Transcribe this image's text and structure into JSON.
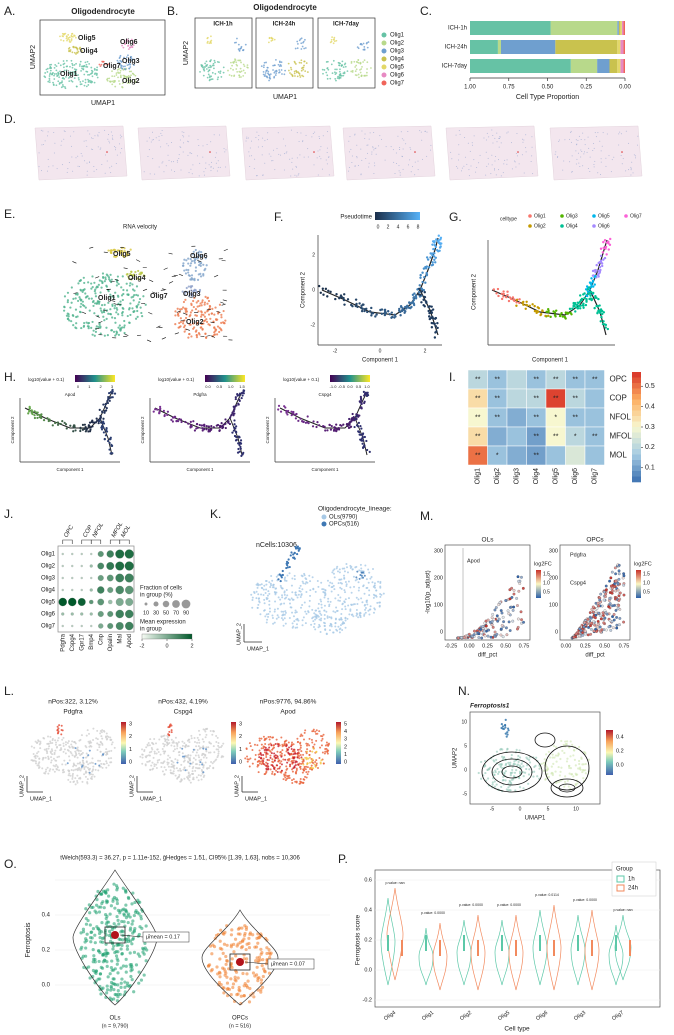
{
  "chart_data": [
    {
      "type": "stacked-barh",
      "categories": [
        "ICH-1h",
        "ICH-24h",
        "ICH-7day"
      ],
      "series": [
        {
          "name": "Olig1",
          "color": "#66c2a5",
          "values": [
            0.52,
            0.18,
            0.65
          ]
        },
        {
          "name": "Olig2",
          "color": "#b8d98b",
          "values": [
            0.43,
            0.02,
            0.17
          ]
        },
        {
          "name": "Olig3",
          "color": "#6f9fcf",
          "values": [
            0.01,
            0.35,
            0.08
          ]
        },
        {
          "name": "Olig4",
          "color": "#c9c24e",
          "values": [
            0.01,
            0.4,
            0.05
          ]
        },
        {
          "name": "Olig5",
          "color": "#e3d868",
          "values": [
            0.01,
            0.02,
            0.02
          ]
        },
        {
          "name": "Olig6",
          "color": "#e78ac3",
          "values": [
            0.01,
            0.02,
            0.02
          ]
        },
        {
          "name": "Olig7",
          "color": "#f0645a",
          "values": [
            0.01,
            0.01,
            0.01
          ]
        }
      ],
      "xlim": [
        1,
        0
      ],
      "xticks": [
        {
          "value": 1,
          "label": "1.00"
        },
        {
          "value": 0.75,
          "label": "0.75"
        },
        {
          "value": 0.5,
          "label": "0.50"
        },
        {
          "value": 0.25,
          "label": "0.25"
        },
        {
          "value": 0,
          "label": "0.00"
        }
      ],
      "xlabel": "Cell Type Proportion"
    },
    {
      "type": "heatmap",
      "rows": [
        "OPC",
        "COP",
        "NFOL",
        "MFOL",
        "MOL"
      ],
      "columns": [
        "Olig1",
        "Olig2",
        "Olig3",
        "Olig4",
        "Olig5",
        "Olig6",
        "Olig7"
      ],
      "values": [
        [
          0.2,
          0.15,
          0.2,
          0.15,
          0.2,
          0.15,
          0.15
        ],
        [
          0.35,
          0.15,
          0.2,
          0.2,
          0.55,
          0.2,
          0.15
        ],
        [
          0.3,
          0.15,
          0.12,
          0.15,
          0.3,
          0.15,
          0.15
        ],
        [
          0.35,
          0.12,
          0.15,
          0.1,
          0.3,
          0.2,
          0.15
        ],
        [
          0.5,
          0.15,
          0.12,
          0.1,
          0.15,
          0.25,
          0.15
        ]
      ],
      "annotations": [
        [
          "**",
          "**",
          null,
          "**",
          "**",
          "**",
          "**"
        ],
        [
          "**",
          "**",
          null,
          "**",
          "**",
          "**",
          null
        ],
        [
          "**",
          "**",
          null,
          "**",
          "*",
          "**",
          null
        ],
        [
          "**",
          null,
          null,
          "**",
          "**",
          "*",
          "**"
        ],
        [
          "**",
          "*",
          null,
          "**",
          null,
          null,
          null
        ]
      ],
      "zlim": [
        0.03,
        0.57
      ],
      "zticks": [
        0.1,
        0.2,
        0.3,
        0.4,
        0.5
      ]
    },
    {
      "type": "dotplot",
      "groups": [
        "OPC",
        "COP",
        "NFOL",
        "MFOL",
        "MOL"
      ],
      "rows": [
        "Olig1",
        "Olig2",
        "Olig3",
        "Olig4",
        "Olig5",
        "Olig6",
        "Olig7"
      ],
      "genes": [
        "Pdgfra",
        "Cspg4",
        "Gpr17",
        "Bmp4",
        "Cnp",
        "Opalin",
        "Mal",
        "Apod"
      ],
      "fraction": [
        [
          5,
          5,
          5,
          5,
          40,
          60,
          90,
          95
        ],
        [
          5,
          5,
          5,
          10,
          50,
          70,
          90,
          95
        ],
        [
          5,
          5,
          5,
          5,
          40,
          50,
          85,
          90
        ],
        [
          5,
          5,
          5,
          10,
          60,
          40,
          80,
          80
        ],
        [
          80,
          80,
          70,
          20,
          50,
          20,
          70,
          70
        ],
        [
          10,
          10,
          10,
          10,
          40,
          40,
          80,
          80
        ],
        [
          5,
          5,
          5,
          5,
          30,
          40,
          70,
          80
        ]
      ],
      "expression": [
        [
          -1,
          -1,
          -1,
          -1,
          0.5,
          1,
          1.5,
          1.5
        ],
        [
          -1,
          -1,
          -1,
          -0.5,
          0.8,
          1.2,
          1.5,
          1.5
        ],
        [
          -1,
          -1,
          -1,
          -1,
          0.3,
          0.5,
          1,
          1
        ],
        [
          -1,
          -1,
          -1,
          -0.5,
          1,
          0.3,
          0.8,
          0.5
        ],
        [
          2,
          2,
          1.8,
          0.5,
          0.5,
          -0.5,
          0,
          0
        ],
        [
          -0.5,
          -0.5,
          -0.5,
          -0.5,
          0.3,
          0.5,
          1,
          1
        ],
        [
          -1,
          -1,
          -1,
          -1,
          0,
          0.5,
          0.8,
          1
        ]
      ],
      "size_legend_title": [
        "Fraction of cells",
        "in group (%)"
      ],
      "size_ticks": [
        10,
        30,
        50,
        70,
        90
      ],
      "color_legend_title": [
        "Mean expression",
        "in group"
      ],
      "clim": [
        -2,
        2
      ],
      "color_ticks": [
        -2,
        0,
        2
      ]
    }
  ],
  "figure": {
    "A": {
      "letter": "A.",
      "title": "Oligodendrocyte",
      "labels": [
        "Olig5",
        "Olig4",
        "Olig6",
        "Olig1",
        "Olig7",
        "Olig3",
        "Olig2"
      ],
      "xlabel": "UMAP1",
      "ylabel": "UMAP2"
    },
    "B": {
      "letter": "B.",
      "title": "Oligodendrocyte",
      "panels": [
        "ICH-1h",
        "ICH-24h",
        "ICH-7day"
      ],
      "xlabel": "UMAP1",
      "ylabel": "UMAP2"
    },
    "C": {
      "letter": "C."
    },
    "D": {
      "letter": "D."
    },
    "E": {
      "letter": "E.",
      "title": "RNA velocity",
      "labels": [
        "Olig5",
        "Olig4",
        "Olig6",
        "Olig7",
        "Olig3",
        "Olig1",
        "Olig2"
      ]
    },
    "F": {
      "letter": "F.",
      "legend_title": "Pseudotime",
      "colorbar_ticks": [
        "0",
        "2",
        "4",
        "6",
        "8"
      ],
      "xlabel": "Component 1",
      "ylabel": "Component 2",
      "xticks": [
        "-2",
        "0",
        "2"
      ],
      "yticks": [
        "2",
        "0",
        "-2"
      ]
    },
    "G": {
      "letter": "G.",
      "legend_title": "celltype",
      "legend_colors": [
        "#f8766d",
        "#c49a00",
        "#53b400",
        "#00c094",
        "#00b6eb",
        "#a58aff",
        "#fb61d7"
      ],
      "xlabel": "Component 1",
      "ylabel": "Component 2"
    },
    "H": {
      "letter": "H.",
      "plots": [
        {
          "legend_title": "log10(value + 0.1)",
          "gene": "Apod",
          "colorbar_ticks": [
            "0",
            "1",
            "2",
            "3"
          ]
        },
        {
          "legend_title": "log10(value + 0.1)",
          "gene": "Pdgfra",
          "colorbar_ticks": [
            "0.0",
            "0.5",
            "1.0",
            "1.5"
          ]
        },
        {
          "legend_title": "log10(value + 0.1)",
          "gene": "Cspg4",
          "colorbar_ticks": [
            "-1.0",
            "-0.5",
            "0.0",
            "0.5",
            "1.0"
          ]
        }
      ],
      "xlabel": "Component 1",
      "ylabel": "Component 2"
    },
    "I": {
      "letter": "I."
    },
    "J": {
      "letter": "J."
    },
    "K": {
      "letter": "K.",
      "legend_title": "Oligodendrocyte_lineage:",
      "legend": [
        "OLs(9790)",
        "OPCs(516)"
      ],
      "note": "nCells:10306",
      "xlabel": "UMAP_1",
      "ylabel": "UMAP_2"
    },
    "M": {
      "letter": "M.",
      "ylabel": "-log10(p_adjust)",
      "xlabel": "diff_pct",
      "legend_title": "log2FC",
      "plots": [
        {
          "title": "OLs",
          "xticks": [
            "-0.25",
            "0.00",
            "0.25",
            "0.50",
            "0.75"
          ],
          "yticks": [
            "0",
            "100",
            "200",
            "300"
          ],
          "colorbar_ticks": [
            "1.5",
            "1.0",
            "0.5"
          ],
          "genes": [
            "Apod"
          ]
        },
        {
          "title": "OPCs",
          "xticks": [
            "0.00",
            "0.25",
            "0.50",
            "0.75"
          ],
          "yticks": [
            "0",
            "100",
            "200",
            "300"
          ],
          "colorbar_ticks": [
            "1.5",
            "1.0",
            "0.5"
          ],
          "genes": [
            "Pdgfra",
            "Cspg4"
          ]
        }
      ]
    },
    "L": {
      "letter": "L.",
      "xlabel": "UMAP_1",
      "ylabel": "UMAP_2",
      "plots": [
        {
          "note": "nPos:322, 3.12%",
          "gene": "Pdgfra",
          "colorbar_ticks": [
            "3",
            "2",
            "1",
            "0"
          ]
        },
        {
          "note": "nPos:432, 4.19%",
          "gene": "Cspg4",
          "colorbar_ticks": [
            "3",
            "2",
            "1",
            "0"
          ]
        },
        {
          "note": "nPos:9776, 94.86%",
          "gene": "Apod",
          "colorbar_ticks": [
            "5",
            "4",
            "3",
            "2",
            "1",
            "0"
          ]
        }
      ]
    },
    "N": {
      "letter": "N.",
      "title": "Ferroptosis1",
      "xlabel": "UMAP1",
      "ylabel": "UMAP2",
      "xticks": [
        "-5",
        "0",
        "5",
        "10"
      ],
      "yticks": [
        "10",
        "5",
        "0",
        "-5"
      ],
      "colorbar_ticks": [
        "0.4",
        "0.2",
        "0.0"
      ]
    },
    "O": {
      "letter": "O.",
      "stats": "tWelch(593.3) = 36.27, p = 1.11e-152, ĝHedges = 1.51, CI95% [1.39, 1.63], nobs = 10,306",
      "ylabel": "Ferroptosis",
      "yticks": [
        "0.4",
        "0.2",
        "0.0"
      ],
      "groups": [
        {
          "name": "OLs",
          "n": "(n = 9,790)",
          "mean": "μ̂mean = 0.17"
        },
        {
          "name": "OPCs",
          "n": "(n = 516)",
          "mean": "μ̂mean = 0.07"
        }
      ]
    },
    "P": {
      "letter": "P.",
      "legend_title": "Group",
      "legend": [
        "1h",
        "24h"
      ],
      "legend_colors": [
        "#5cc8a8",
        "#f28a5e"
      ],
      "ylabel": "Ferroptosis score",
      "xlabel": "Cell type",
      "yticks": [
        "0.6",
        "0.4",
        "0.2",
        "0.0",
        "-0.2"
      ],
      "categories": [
        "Olig4",
        "Olig1",
        "Olig2",
        "Olig5",
        "Olig6",
        "Olig3",
        "Olig7"
      ],
      "pvalues": [
        "p.value: nan",
        "p.value: 0.0000",
        "p.value: 0.0000",
        "p.value: 0.0000",
        "p.value: 0.0114",
        "p.value: 0.0000",
        "p.value: nan"
      ]
    }
  }
}
